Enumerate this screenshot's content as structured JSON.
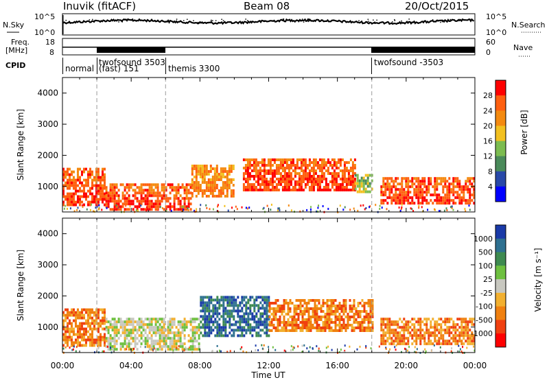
{
  "header": {
    "site": "Inuvik (fitACF)",
    "beam": "Beam 08",
    "date": "20/Oct/2015"
  },
  "noise_panel": {
    "left_label": "N.Sky",
    "right_label": "N.Search",
    "ticks_left": [
      "10^5",
      "10^0"
    ],
    "ticks_right": [
      "10^5",
      "10^0"
    ]
  },
  "freq_panel": {
    "left_label_1": "Freq.",
    "left_label_2": "[MHz]",
    "right_label": "Nave",
    "ticks_left": [
      "18",
      "8"
    ],
    "ticks_right": [
      "60",
      "0"
    ]
  },
  "cpid": {
    "label": "CPID",
    "modes": [
      {
        "name": "normal",
        "start_hour": 0
      },
      {
        "name": "twofsound 3503",
        "name2": "(fast) 151",
        "start_hour": 2
      },
      {
        "name": "themis 3300",
        "start_hour": 6
      },
      {
        "name": "twofsound -3503",
        "start_hour": 18
      }
    ]
  },
  "x_axis": {
    "label": "Time UT",
    "ticks": [
      "00:00",
      "04:00",
      "08:00",
      "12:00",
      "16:00",
      "20:00",
      "00:00"
    ],
    "range_hours": [
      0,
      24
    ],
    "mode_change_hours": [
      2,
      6,
      18
    ]
  },
  "chart_data": [
    {
      "type": "heatmap",
      "title": "",
      "xlabel": "",
      "ylabel": "Slant Range [km]",
      "yticks": [
        "1000",
        "2000",
        "3000",
        "4000"
      ],
      "ylim": [
        180,
        4500
      ],
      "colorbar_label": "Power [dB]",
      "colorbar_ticks": [
        "4",
        "8",
        "12",
        "16",
        "20",
        "24",
        "28"
      ],
      "colors": [
        "#0000ff",
        "#2848a8",
        "#4a8a5a",
        "#7cbc50",
        "#f2c020",
        "#f48a10",
        "#ff6010",
        "#ff0000"
      ],
      "bands": [
        {
          "hours": [
            0,
            2.5
          ],
          "range_km": [
            400,
            1600
          ],
          "level": 7
        },
        {
          "hours": [
            2.5,
            7.5
          ],
          "range_km": [
            300,
            1100
          ],
          "level": 7
        },
        {
          "hours": [
            7.5,
            10
          ],
          "range_km": [
            700,
            1700
          ],
          "level": 6
        },
        {
          "hours": [
            10.5,
            17
          ],
          "range_km": [
            900,
            1900
          ],
          "level": 7
        },
        {
          "hours": [
            17,
            18
          ],
          "range_km": [
            800,
            1400
          ],
          "level": 4
        },
        {
          "hours": [
            18.5,
            24
          ],
          "range_km": [
            500,
            1300
          ],
          "level": 7
        }
      ]
    },
    {
      "type": "heatmap",
      "title": "",
      "xlabel": "Time UT",
      "ylabel": "Slant Range [km]",
      "yticks": [
        "1000",
        "2000",
        "3000",
        "4000"
      ],
      "ylim": [
        180,
        4500
      ],
      "colorbar_label": "Velocity [m s⁻¹]",
      "colorbar_ticks": [
        "1000",
        "500",
        "100",
        "25",
        "-25",
        "-100",
        "-500",
        "-1000"
      ],
      "colors": [
        "#1a3aa8",
        "#2e7090",
        "#3e8a50",
        "#6ec040",
        "#c8c8c0",
        "#f2b030",
        "#f08010",
        "#f04010",
        "#ff0000"
      ],
      "bands": [
        {
          "hours": [
            0,
            2.5
          ],
          "range_km": [
            400,
            1600
          ],
          "velocity": -100
        },
        {
          "hours": [
            2.5,
            8
          ],
          "range_km": [
            300,
            1300
          ],
          "velocity": 25
        },
        {
          "hours": [
            8,
            12
          ],
          "range_km": [
            700,
            2000
          ],
          "velocity": 500
        },
        {
          "hours": [
            12,
            18
          ],
          "range_km": [
            900,
            1900
          ],
          "velocity": -100
        },
        {
          "hours": [
            18.5,
            24
          ],
          "range_km": [
            500,
            1300
          ],
          "velocity": -100
        }
      ]
    }
  ]
}
